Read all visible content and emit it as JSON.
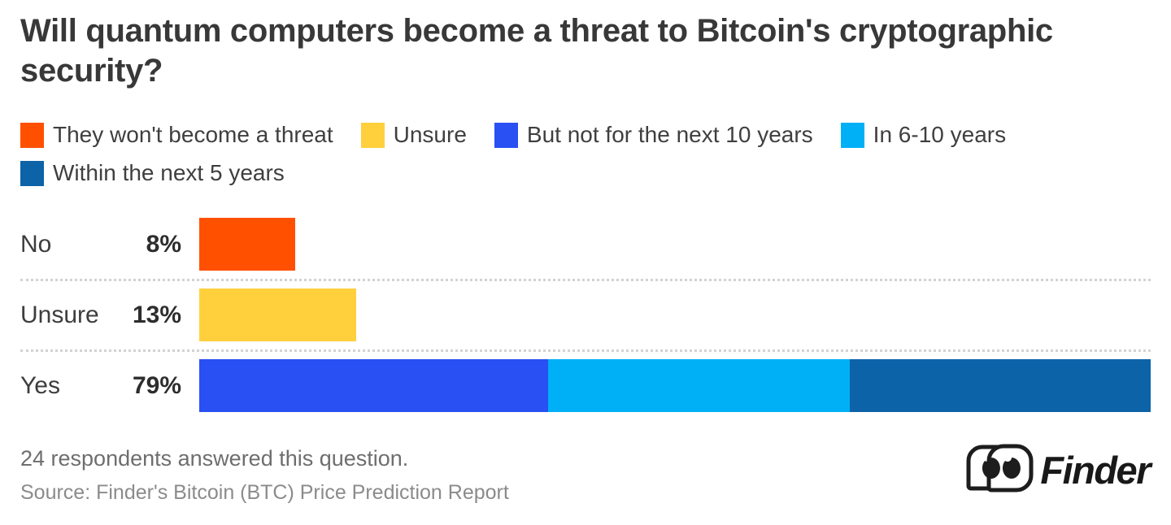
{
  "title": "Will quantum computers become a threat to Bitcoin's cryptographic security?",
  "colors": {
    "no_bar": "#FF5000",
    "unsure_bar": "#FFD03C",
    "not_next_10_years": "#2850F2",
    "in_6_10_years": "#00B0F7",
    "within_5_years": "#0D63A8",
    "title_text": "#383838",
    "footer_text": "#6e6e6e",
    "separator": "#d2d2d2"
  },
  "legend": [
    {
      "label": "They won't become a threat",
      "color": "#FF5000"
    },
    {
      "label": "Unsure",
      "color": "#FFD03C"
    },
    {
      "label": "But not for the next 10 years",
      "color": "#2850F2"
    },
    {
      "label": "In 6-10 years",
      "color": "#00B0F7"
    },
    {
      "label": "Within the next 5 years",
      "color": "#0D63A8"
    }
  ],
  "chart_data": {
    "type": "bar",
    "orientation": "horizontal",
    "stacked": true,
    "title": "Will quantum computers become a threat to Bitcoin's cryptographic security?",
    "xlabel": "",
    "ylabel": "",
    "xlim": [
      0,
      79
    ],
    "axis_visible": false,
    "grid": false,
    "legend_position": "top",
    "categories": [
      "No",
      "Unsure",
      "Yes"
    ],
    "rows": [
      {
        "category": "No",
        "total": 8,
        "total_label": "8%",
        "segments": [
          {
            "name": "They won't become a threat",
            "value": 8,
            "color": "#FF5000"
          }
        ]
      },
      {
        "category": "Unsure",
        "total": 13,
        "total_label": "13%",
        "segments": [
          {
            "name": "Unsure",
            "value": 13,
            "color": "#FFD03C"
          }
        ]
      },
      {
        "category": "Yes",
        "total": 79,
        "total_label": "79%",
        "segments": [
          {
            "name": "But not for the next 10 years",
            "value": 29,
            "color": "#2850F2"
          },
          {
            "name": "In 6-10 years",
            "value": 25,
            "color": "#00B0F7"
          },
          {
            "name": "Within the next 5 years",
            "value": 25,
            "color": "#0D63A8"
          }
        ]
      }
    ]
  },
  "footer": {
    "respondents_note": "24 respondents answered this question.",
    "source": "Source: Finder's Bitcoin (BTC) Price Prediction Report",
    "logo_text": "Finder"
  }
}
